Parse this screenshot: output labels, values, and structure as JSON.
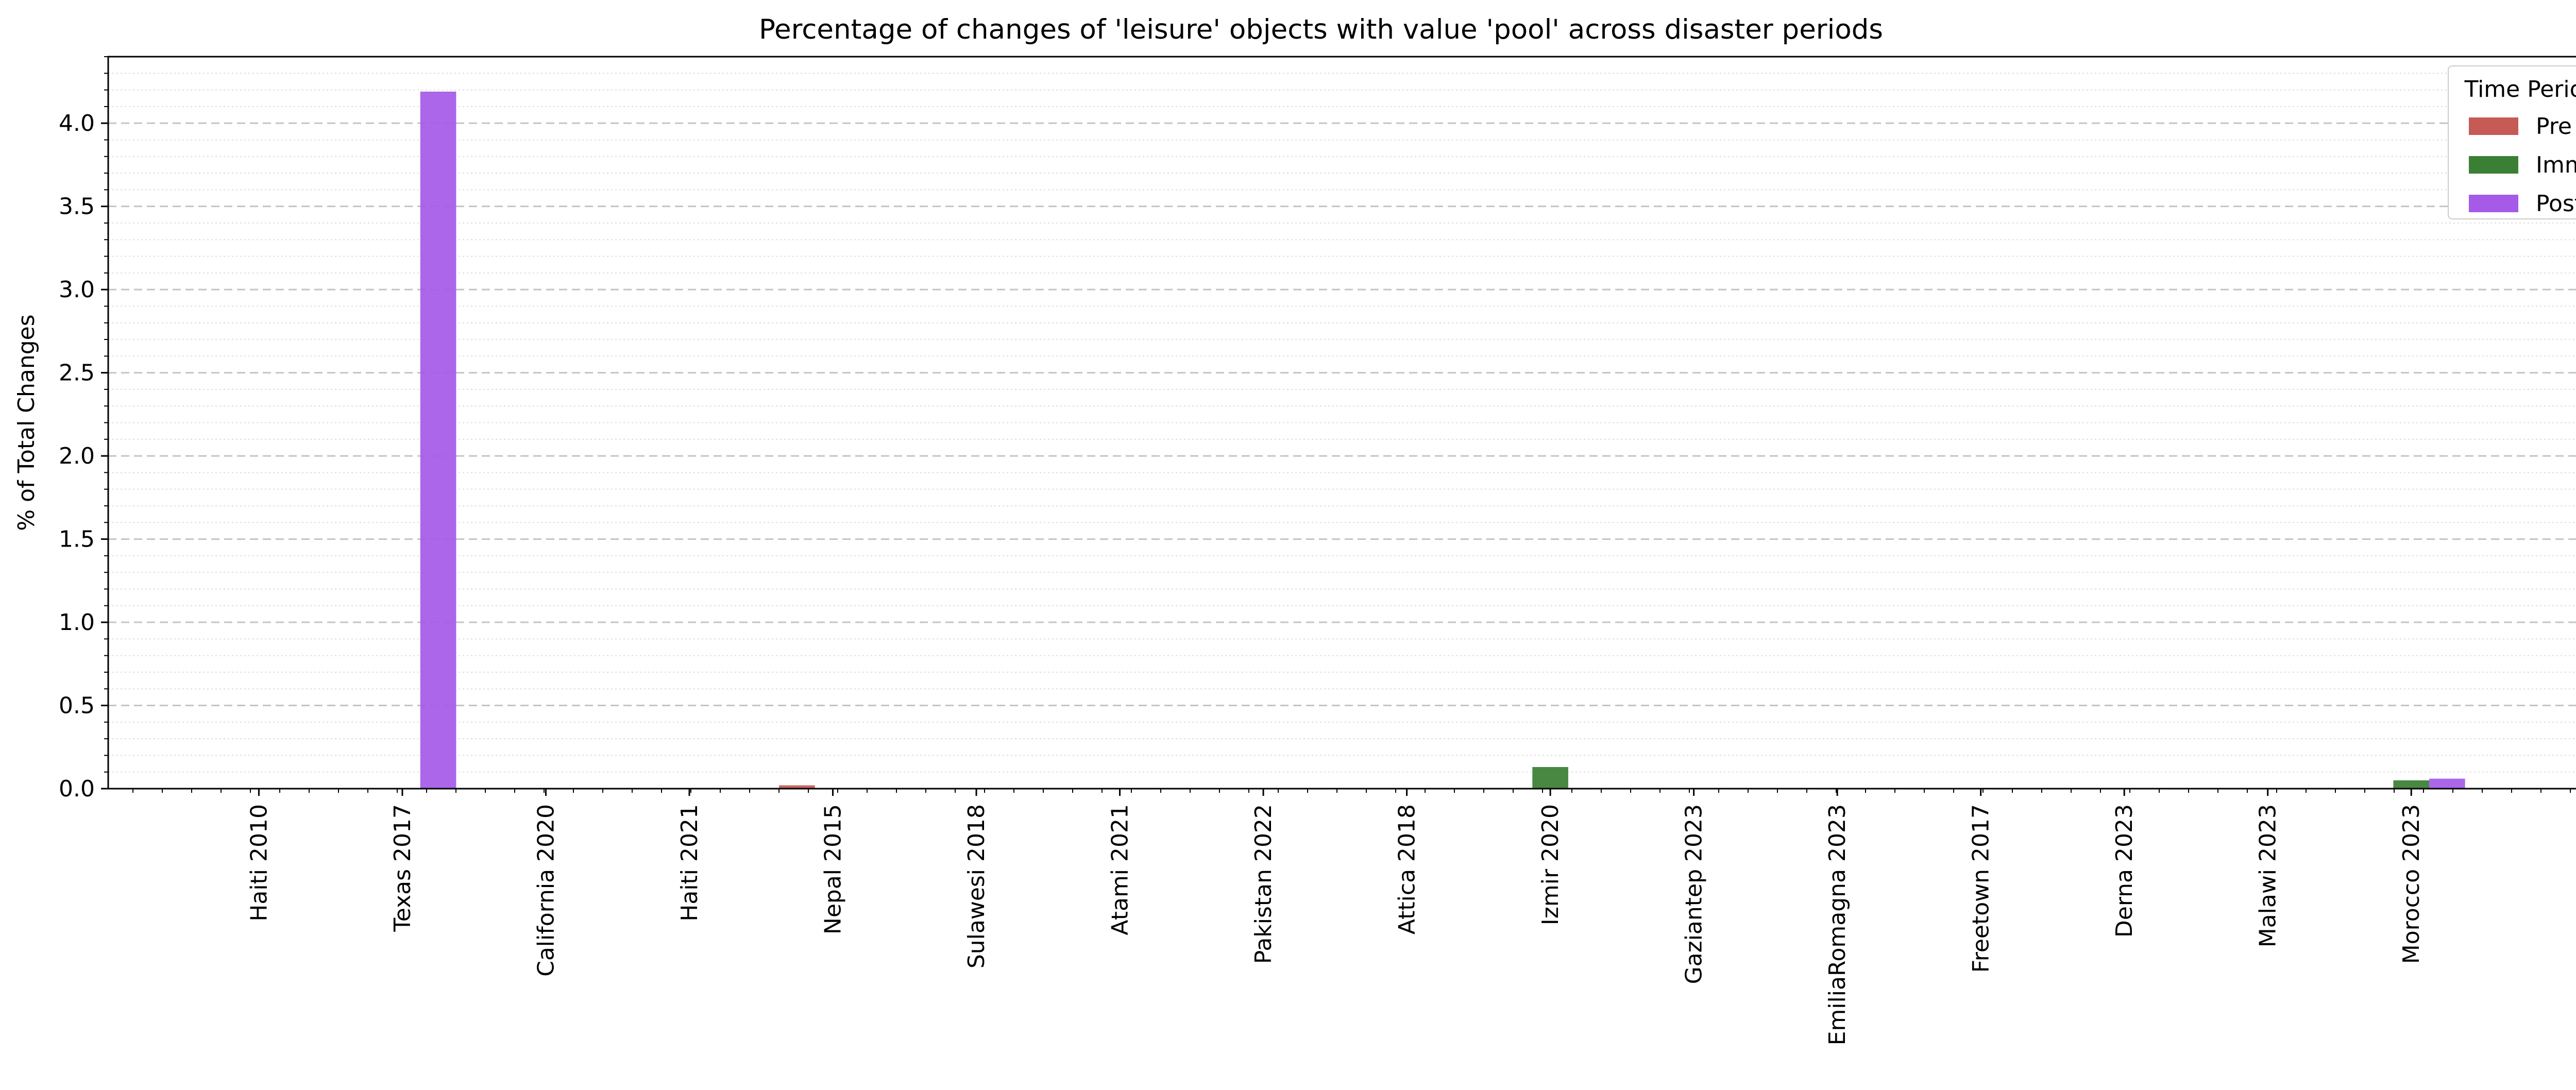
{
  "chart_data": {
    "type": "bar",
    "title": "Percentage of changes of 'leisure' objects with value 'pool' across disaster periods",
    "xlabel": "",
    "ylabel": "% of Total Changes",
    "ylim": [
      0,
      4.4
    ],
    "yticks": [
      "0.0",
      "0.5",
      "1.0",
      "1.5",
      "2.0",
      "2.5",
      "3.0",
      "3.5",
      "4.0"
    ],
    "grid": "on",
    "legend_title": "Time Period",
    "legend_position": "top-right",
    "categories": [
      "Haiti 2010",
      "Texas 2017",
      "California 2020",
      "Haiti 2021",
      "Nepal 2015",
      "Sulawesi 2018",
      "Atami 2021",
      "Pakistan 2022",
      "Attica 2018",
      "Izmir 2020",
      "Gaziantep 2023",
      "EmiliaRomagna 2023",
      "Freetown 2017",
      "Derna 2023",
      "Malawi 2023",
      "Morocco 2023"
    ],
    "series": [
      {
        "name": "Pre",
        "color": "#c65a55",
        "values": [
          0,
          0,
          0,
          0,
          0.02,
          0,
          0,
          0,
          0,
          0,
          0,
          0,
          0,
          0,
          0,
          0
        ]
      },
      {
        "name": "Imm",
        "color": "#3b7f34",
        "values": [
          0,
          0,
          0,
          0,
          0,
          0,
          0,
          0,
          0,
          0.13,
          0,
          0,
          0,
          0,
          0,
          0.05
        ]
      },
      {
        "name": "Post",
        "color": "#a55ae8",
        "values": [
          0,
          4.19,
          0,
          0,
          0,
          0,
          0,
          0,
          0,
          0,
          0,
          0,
          0,
          0,
          0,
          0.06
        ]
      }
    ]
  }
}
